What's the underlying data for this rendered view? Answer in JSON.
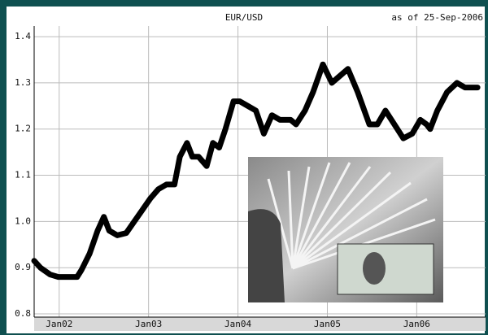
{
  "chart_data": {
    "type": "line",
    "title": "EUR/USD",
    "subtitle": "as of 25-Sep-2006",
    "x": [
      2001.72,
      2001.79,
      2001.9,
      2001.99,
      2002.11,
      2002.2,
      2002.25,
      2002.34,
      2002.43,
      2002.5,
      2002.56,
      2002.65,
      2002.75,
      2002.84,
      2002.93,
      2003.02,
      2003.11,
      2003.2,
      2003.29,
      2003.35,
      2003.43,
      2003.49,
      2003.56,
      2003.65,
      2003.72,
      2003.79,
      2003.86,
      2003.95,
      2004.02,
      2004.11,
      2004.2,
      2004.29,
      2004.38,
      2004.47,
      2004.59,
      2004.65,
      2004.75,
      2004.84,
      2004.95,
      2005.05,
      2005.11,
      2005.23,
      2005.34,
      2005.47,
      2005.56,
      2005.65,
      2005.75,
      2005.85,
      2005.95,
      2006.04,
      2006.11,
      2006.15,
      2006.23,
      2006.34,
      2006.45,
      2006.54,
      2006.68
    ],
    "values": [
      0.915,
      0.9,
      0.885,
      0.88,
      0.88,
      0.88,
      0.895,
      0.93,
      0.98,
      1.01,
      0.98,
      0.97,
      0.975,
      1.0,
      1.025,
      1.05,
      1.07,
      1.08,
      1.08,
      1.14,
      1.17,
      1.14,
      1.14,
      1.12,
      1.17,
      1.16,
      1.2,
      1.26,
      1.26,
      1.25,
      1.24,
      1.19,
      1.23,
      1.22,
      1.22,
      1.21,
      1.24,
      1.28,
      1.34,
      1.3,
      1.31,
      1.33,
      1.28,
      1.21,
      1.21,
      1.24,
      1.21,
      1.18,
      1.19,
      1.22,
      1.21,
      1.2,
      1.24,
      1.28,
      1.3,
      1.29,
      1.29
    ],
    "color": "#000000",
    "xlim": [
      2001.72,
      2006.77
    ],
    "xticks": [
      {
        "value": 2002,
        "label": "Jan02"
      },
      {
        "value": 2003,
        "label": "Jan03"
      },
      {
        "value": 2004,
        "label": "Jan04"
      },
      {
        "value": 2005,
        "label": "Jan05"
      },
      {
        "value": 2006,
        "label": "Jan06"
      }
    ],
    "ylim": [
      0.793,
      1.423
    ],
    "yticks": [
      0.8,
      0.9,
      {
        "value": 1,
        "label": "1.0"
      },
      1.1,
      1.2,
      1.3,
      1.4
    ],
    "grid": true
  }
}
